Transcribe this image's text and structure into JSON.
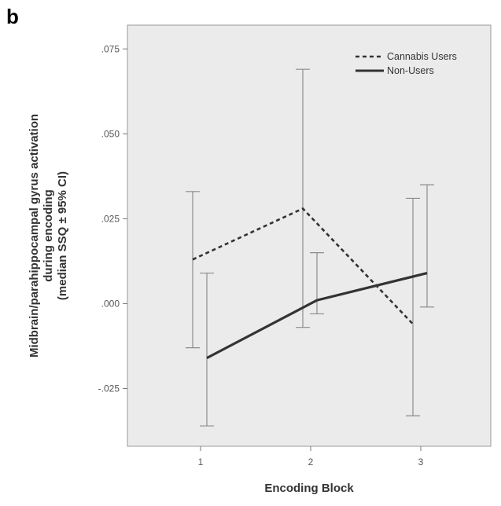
{
  "panel_label": "b",
  "chart_data": {
    "type": "line",
    "xlabel": "Encoding Block",
    "ylabel_lines": [
      "Midbrain/parahippocampal gyrus activation",
      "during encoding",
      "(median SSQ ± 95% CI)"
    ],
    "categories": [
      "1",
      "2",
      "3"
    ],
    "ylim": [
      -0.042,
      0.082
    ],
    "yticks": [
      -0.025,
      0.0,
      0.025,
      0.05,
      0.075
    ],
    "ytick_labels": [
      "-.025",
      ".000",
      ".025",
      ".050",
      ".075"
    ],
    "grid": false,
    "legend_position": "top-right",
    "background_color": "#ebebeb",
    "series": [
      {
        "name": "Cannabis Users",
        "style": "dashed",
        "color": "#333333",
        "values": [
          0.013,
          0.028,
          -0.006
        ],
        "ci_low": [
          -0.013,
          -0.007,
          -0.033
        ],
        "ci_high": [
          0.033,
          0.069,
          0.031
        ]
      },
      {
        "name": "Non-Users",
        "style": "solid",
        "color": "#333333",
        "values": [
          -0.016,
          0.001,
          0.009
        ],
        "ci_low": [
          -0.036,
          -0.003,
          -0.001
        ],
        "ci_high": [
          0.009,
          0.015,
          0.035
        ]
      }
    ]
  }
}
